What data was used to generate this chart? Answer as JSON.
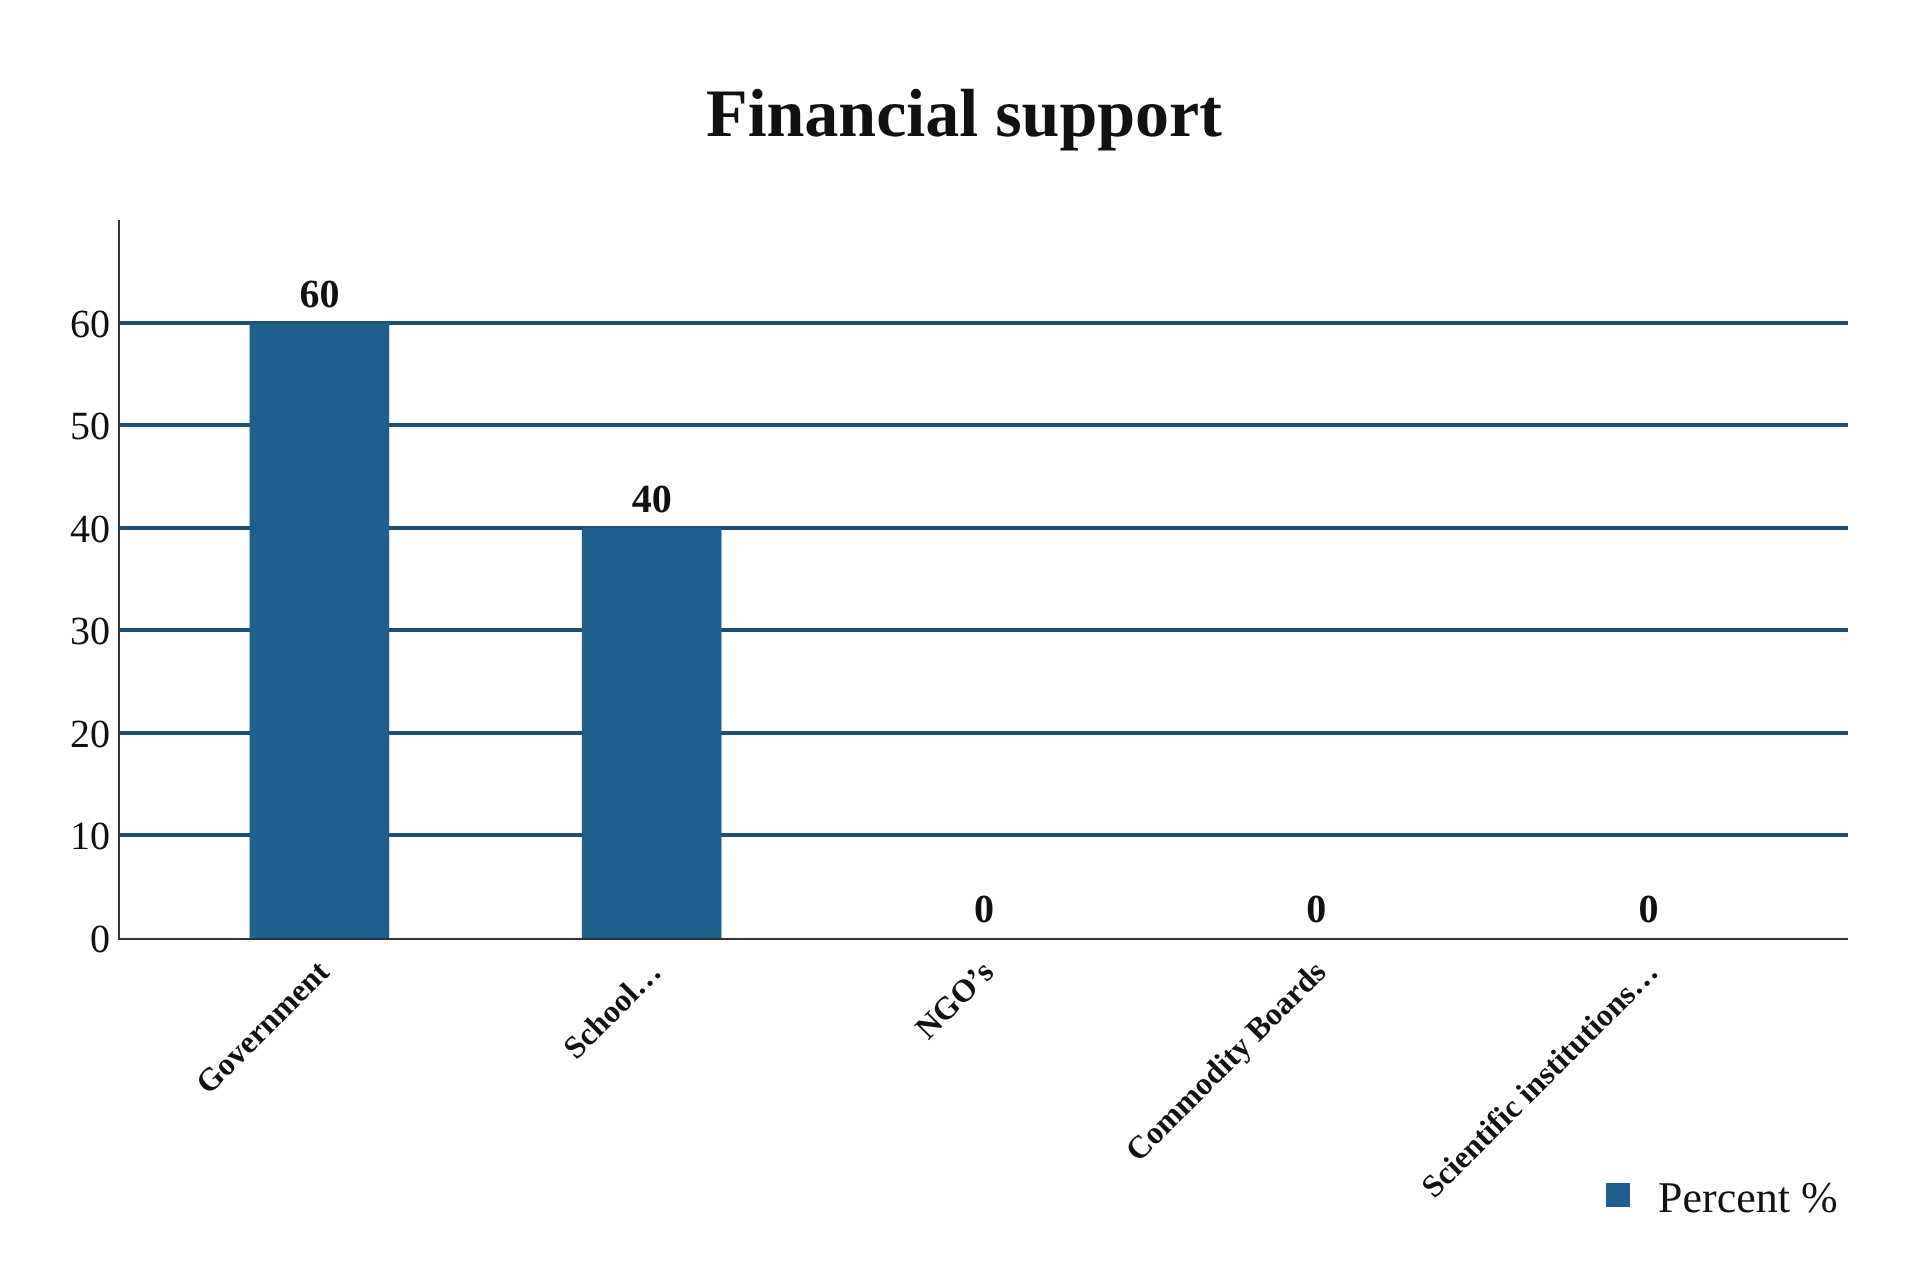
{
  "chart_data": {
    "type": "bar",
    "title": "Financial support",
    "categories": [
      "Government",
      "School…",
      "NGO’s",
      "Commodity Boards",
      "Scientific institutions…"
    ],
    "series": [
      {
        "name": "Percent %",
        "color": "#1f5f8e",
        "values": [
          60,
          40,
          0,
          0,
          0
        ]
      }
    ],
    "ylim": [
      0,
      70
    ],
    "yticks": [
      0,
      10,
      20,
      30,
      40,
      50,
      60
    ],
    "grid": "y",
    "legend": "bottom right",
    "data_labels": true
  }
}
